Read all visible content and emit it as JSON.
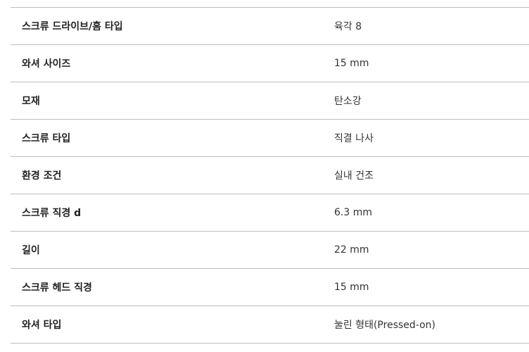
{
  "specs": [
    {
      "label": "스크류 드라이브/홈 타입",
      "value": "육각 8"
    },
    {
      "label": "와셔 사이즈",
      "value": "15 mm"
    },
    {
      "label": "모재",
      "value": "탄소강"
    },
    {
      "label": "스크류 타입",
      "value": "직결 나사"
    },
    {
      "label": "환경 조건",
      "value": "실내 건조"
    },
    {
      "label": "스크류 직경 d",
      "value": "6.3 mm"
    },
    {
      "label": "길이",
      "value": "22 mm"
    },
    {
      "label": "스크류 헤드 직경",
      "value": "15 mm"
    },
    {
      "label": "와셔 타입",
      "value": "눌린 형태(Pressed-on)"
    }
  ]
}
